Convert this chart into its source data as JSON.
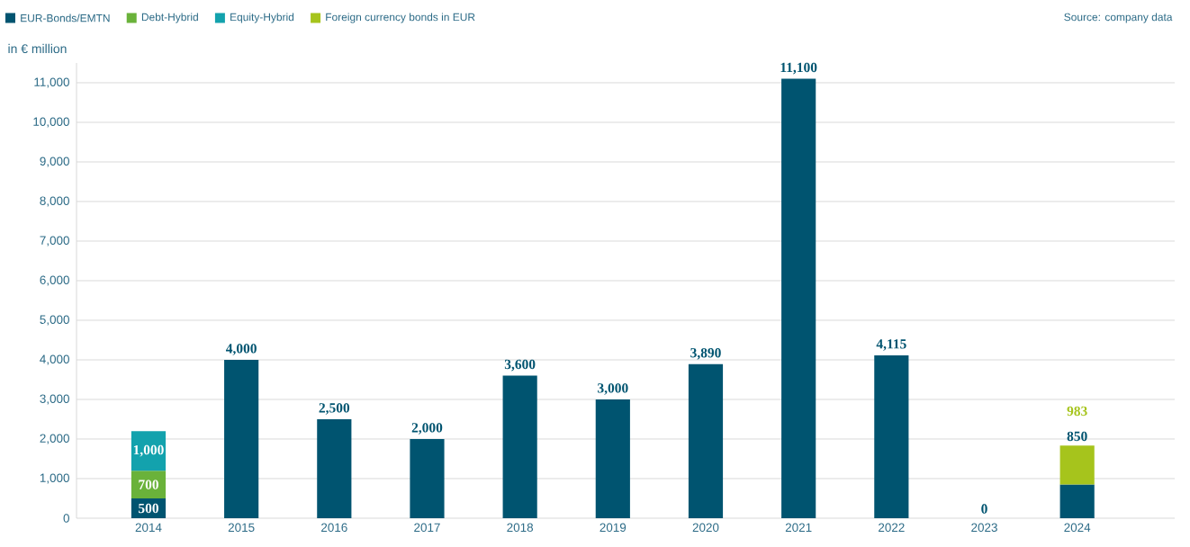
{
  "chart_data": {
    "type": "bar",
    "stacked": true,
    "ylabel": "in € million",
    "categories": [
      "2014",
      "2015",
      "2016",
      "2017",
      "2018",
      "2019",
      "2020",
      "2021",
      "2022",
      "2023",
      "2024"
    ],
    "series": [
      {
        "name": "EUR-Bonds/EMTN",
        "color": "#005470",
        "values": [
          500,
          4000,
          2500,
          2000,
          3600,
          3000,
          3890,
          11100,
          4115,
          0,
          850
        ],
        "value_labels": [
          "500",
          "4,000",
          "2,500",
          "2,000",
          "3,600",
          "3,000",
          "3,890",
          "11,100",
          "4,115",
          "0",
          "850"
        ]
      },
      {
        "name": "Debt-Hybrid",
        "color": "#6ab23a",
        "values": [
          700,
          null,
          null,
          null,
          null,
          null,
          null,
          null,
          null,
          null,
          null
        ],
        "value_labels": [
          "700",
          null,
          null,
          null,
          null,
          null,
          null,
          null,
          null,
          null,
          null
        ]
      },
      {
        "name": "Equity-Hybrid",
        "color": "#13a2ad",
        "values": [
          1000,
          null,
          null,
          null,
          null,
          null,
          null,
          null,
          null,
          null,
          null
        ],
        "value_labels": [
          "1,000",
          null,
          null,
          null,
          null,
          null,
          null,
          null,
          null,
          null,
          null
        ]
      },
      {
        "name": "Foreign currency bonds in EUR",
        "color": "#a6c41c",
        "values": [
          null,
          null,
          null,
          null,
          null,
          null,
          null,
          null,
          null,
          null,
          983
        ],
        "value_labels": [
          null,
          null,
          null,
          null,
          null,
          null,
          null,
          null,
          null,
          null,
          "983"
        ]
      }
    ],
    "ylim": [
      0,
      11500
    ],
    "yticks": [
      0,
      {
        "value": 1000,
        "label": "1,000"
      },
      {
        "value": 2000,
        "label": "2,000"
      },
      {
        "value": 3000,
        "label": "3,000"
      },
      {
        "value": 4000,
        "label": "4,000"
      },
      {
        "value": 5000,
        "label": "5,000"
      },
      {
        "value": 6000,
        "label": "6,000"
      },
      {
        "value": 7000,
        "label": "7,000"
      },
      {
        "value": 8000,
        "label": "8,000"
      },
      {
        "value": 9000,
        "label": "9,000"
      },
      {
        "value": 10000,
        "label": "10,000"
      },
      {
        "value": 11000,
        "label": "11,000"
      }
    ],
    "grid": "y",
    "legend": "top left",
    "annotations": [
      "Source: company data"
    ]
  }
}
